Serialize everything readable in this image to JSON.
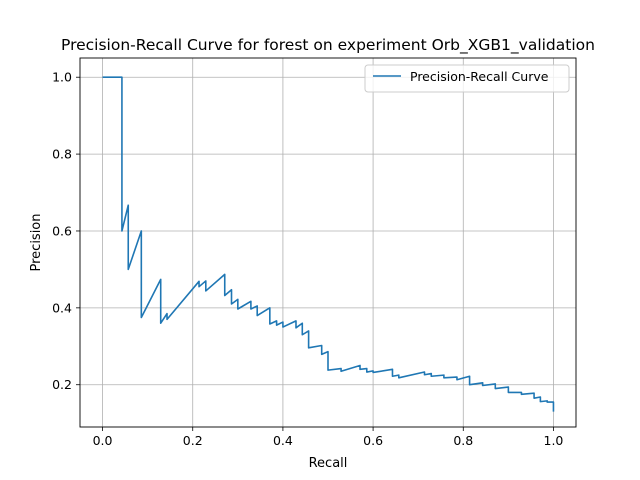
{
  "chart_data": {
    "type": "line",
    "title": "Precision-Recall Curve for forest on experiment Orb_XGB1_validation",
    "xlabel": "Recall",
    "ylabel": "Precision",
    "xlim": [
      -0.05,
      1.05
    ],
    "ylim": [
      0.09,
      1.05
    ],
    "xticks": [
      0.0,
      0.2,
      0.4,
      0.6,
      0.8,
      1.0
    ],
    "xtick_labels": [
      "0.0",
      "0.2",
      "0.4",
      "0.6",
      "0.8",
      "1.0"
    ],
    "yticks": [
      0.2,
      0.4,
      0.6,
      0.8,
      1.0
    ],
    "ytick_labels": [
      "0.2",
      "0.4",
      "0.6",
      "0.8",
      "1.0"
    ],
    "grid": true,
    "legend_position": "top-right",
    "series": [
      {
        "name": "Precision-Recall Curve",
        "color": "#1f77b4",
        "x": [
          0.0,
          0.043,
          0.043,
          0.057,
          0.057,
          0.086,
          0.086,
          0.129,
          0.129,
          0.143,
          0.143,
          0.214,
          0.214,
          0.229,
          0.229,
          0.271,
          0.271,
          0.286,
          0.286,
          0.3,
          0.3,
          0.329,
          0.329,
          0.343,
          0.343,
          0.371,
          0.371,
          0.386,
          0.386,
          0.4,
          0.4,
          0.429,
          0.429,
          0.443,
          0.443,
          0.457,
          0.457,
          0.486,
          0.486,
          0.5,
          0.5,
          0.529,
          0.529,
          0.571,
          0.571,
          0.586,
          0.586,
          0.6,
          0.6,
          0.643,
          0.643,
          0.657,
          0.657,
          0.714,
          0.714,
          0.729,
          0.729,
          0.757,
          0.757,
          0.786,
          0.786,
          0.814,
          0.814,
          0.843,
          0.843,
          0.871,
          0.871,
          0.9,
          0.9,
          0.929,
          0.929,
          0.957,
          0.957,
          0.971,
          0.971,
          0.986,
          0.986,
          1.0,
          1.0
        ],
        "y": [
          1.0,
          1.0,
          0.6,
          0.667,
          0.5,
          0.6,
          0.375,
          0.474,
          0.36,
          0.385,
          0.37,
          0.469,
          0.455,
          0.47,
          0.444,
          0.487,
          0.432,
          0.447,
          0.41,
          0.422,
          0.397,
          0.417,
          0.397,
          0.405,
          0.38,
          0.4,
          0.358,
          0.366,
          0.355,
          0.363,
          0.35,
          0.366,
          0.348,
          0.36,
          0.33,
          0.34,
          0.296,
          0.302,
          0.279,
          0.286,
          0.238,
          0.242,
          0.235,
          0.25,
          0.24,
          0.242,
          0.233,
          0.236,
          0.232,
          0.24,
          0.222,
          0.225,
          0.218,
          0.233,
          0.226,
          0.229,
          0.222,
          0.225,
          0.218,
          0.22,
          0.213,
          0.222,
          0.2,
          0.205,
          0.198,
          0.202,
          0.19,
          0.194,
          0.18,
          0.18,
          0.175,
          0.178,
          0.165,
          0.168,
          0.156,
          0.158,
          0.155,
          0.155,
          0.13
        ]
      }
    ]
  }
}
